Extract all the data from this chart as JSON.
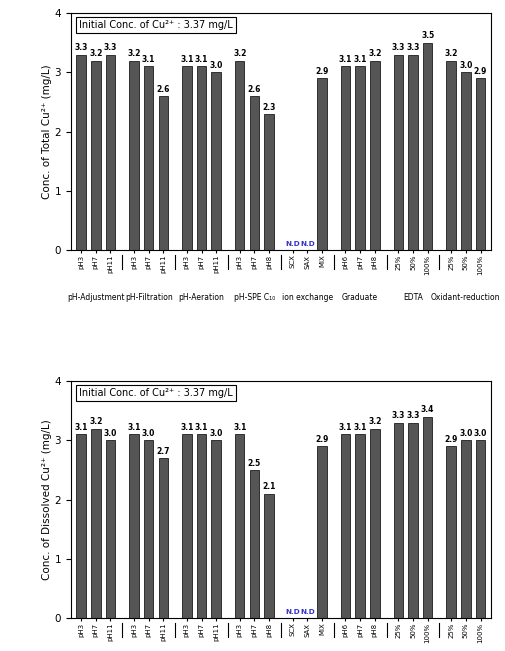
{
  "top_chart": {
    "title": "Initial Conc. of Cu²⁺ : 3.37 mg/L",
    "ylabel": "Conc. of Total Cu²⁺ (mg/L)",
    "ylim": [
      0,
      4
    ],
    "yticks": [
      0,
      1,
      2,
      3,
      4
    ],
    "bar_color": "#555555",
    "groups": [
      {
        "label": "pH-Adjustment",
        "ticks": [
          "pH3",
          "pH7",
          "pH11"
        ],
        "values": [
          3.3,
          3.2,
          3.3
        ],
        "nd": [
          false,
          false,
          false
        ]
      },
      {
        "label": "pH-Filtration",
        "ticks": [
          "pH3",
          "pH7",
          "pH11"
        ],
        "values": [
          3.2,
          3.1,
          2.6
        ],
        "nd": [
          false,
          false,
          false
        ]
      },
      {
        "label": "pH-Aeration",
        "ticks": [
          "pH3",
          "pH7",
          "pH11"
        ],
        "values": [
          3.1,
          3.1,
          3.0
        ],
        "nd": [
          false,
          false,
          false
        ]
      },
      {
        "label": "pH-SPE C₁₀",
        "ticks": [
          "pH3",
          "pH7",
          "pH8"
        ],
        "values": [
          3.2,
          2.6,
          2.3
        ],
        "nd": [
          false,
          false,
          false
        ]
      },
      {
        "label": "ion exchange",
        "ticks": [
          "SCX",
          "SAX",
          "MIX"
        ],
        "values": [
          0,
          0,
          2.9
        ],
        "nd": [
          true,
          true,
          false
        ]
      },
      {
        "label": "Graduate",
        "ticks": [
          "pH6",
          "pH7",
          "pH8"
        ],
        "values": [
          3.1,
          3.1,
          3.2
        ],
        "nd": [
          false,
          false,
          false
        ]
      },
      {
        "label": "EDTA",
        "ticks": [
          "25%",
          "50%",
          "100%"
        ],
        "values": [
          3.3,
          3.3,
          3.5
        ],
        "nd": [
          false,
          false,
          false
        ]
      },
      {
        "label": "Oxidant-reduction",
        "ticks": [
          "25%",
          "50%",
          "100%"
        ],
        "values": [
          3.2,
          3.0,
          2.9
        ],
        "nd": [
          false,
          false,
          false
        ]
      }
    ]
  },
  "bottom_chart": {
    "title": "Initial Conc. of Cu²⁺ : 3.37 mg/L",
    "ylabel": "Conc. of Dissolved Cu²⁺ (mg/L)",
    "ylim": [
      0,
      4
    ],
    "yticks": [
      0,
      1,
      2,
      3,
      4
    ],
    "bar_color": "#555555",
    "groups": [
      {
        "label": "pH-Adjustment",
        "ticks": [
          "pH3",
          "pH7",
          "pH11"
        ],
        "values": [
          3.1,
          3.2,
          3.0
        ],
        "nd": [
          false,
          false,
          false
        ]
      },
      {
        "label": "pH-Filtration",
        "ticks": [
          "pH3",
          "pH7",
          "pH11"
        ],
        "values": [
          3.1,
          3.0,
          2.7
        ],
        "nd": [
          false,
          false,
          false
        ]
      },
      {
        "label": "pH-Aeration",
        "ticks": [
          "pH3",
          "pH7",
          "pH11"
        ],
        "values": [
          3.1,
          3.1,
          3.0
        ],
        "nd": [
          false,
          false,
          false
        ]
      },
      {
        "label": "pH-SPE C₁₀",
        "ticks": [
          "pH3",
          "pH7",
          "pH8"
        ],
        "values": [
          3.1,
          2.5,
          2.1
        ],
        "nd": [
          false,
          false,
          false
        ]
      },
      {
        "label": "ion exchange",
        "ticks": [
          "SCX",
          "SAX",
          "MIX"
        ],
        "values": [
          0,
          0,
          2.9
        ],
        "nd": [
          true,
          true,
          false
        ]
      },
      {
        "label": "Graduate",
        "ticks": [
          "pH6",
          "pH7",
          "pH8"
        ],
        "values": [
          3.1,
          3.1,
          3.2
        ],
        "nd": [
          false,
          false,
          false
        ]
      },
      {
        "label": "EDTA",
        "ticks": [
          "25%",
          "50%",
          "100%"
        ],
        "values": [
          3.3,
          3.3,
          3.4
        ],
        "nd": [
          false,
          false,
          false
        ]
      },
      {
        "label": "Oxidant-reduction",
        "ticks": [
          "25%",
          "50%",
          "100%"
        ],
        "values": [
          2.9,
          3.0,
          3.0
        ],
        "nd": [
          false,
          false,
          false
        ]
      }
    ]
  }
}
